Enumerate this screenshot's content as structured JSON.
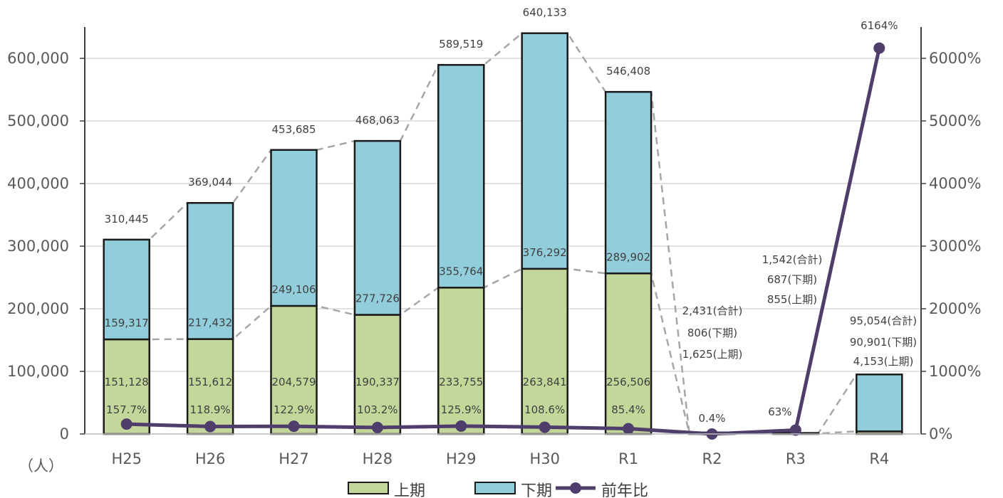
{
  "chart_data": {
    "type": "bar",
    "categories": [
      "H25",
      "H26",
      "H27",
      "H28",
      "H29",
      "H30",
      "R1",
      "R2",
      "R3",
      "R4"
    ],
    "series": [
      {
        "name": "上期",
        "type": "bar",
        "stack": "total",
        "color": "#c4d79b",
        "values": [
          151128,
          151612,
          204579,
          190337,
          233755,
          263841,
          256506,
          1625,
          855,
          4153
        ],
        "labels": [
          "151,128",
          "151,612",
          "204,579",
          "190,337",
          "233,755",
          "263,841",
          "256,506",
          "1,625(上期)",
          "855(上期)",
          "4,153(上期)"
        ]
      },
      {
        "name": "下期",
        "type": "bar",
        "stack": "total",
        "color": "#92cddc",
        "values": [
          159317,
          217432,
          249106,
          277726,
          355764,
          376292,
          289902,
          806,
          687,
          90901
        ],
        "labels": [
          "159,317",
          "217,432",
          "249,106",
          "277,726",
          "355,764",
          "376,292",
          "289,902",
          "806(下期)",
          "687(下期)",
          "90,901(下期)"
        ]
      },
      {
        "name": "前年比",
        "type": "line",
        "axis": "right",
        "color": "#4f3e6b",
        "values": [
          157.7,
          118.9,
          122.9,
          103.2,
          125.9,
          108.6,
          85.4,
          0.4,
          63,
          6164
        ],
        "labels": [
          "157.7%",
          "118.9%",
          "122.9%",
          "103.2%",
          "125.9%",
          "108.6%",
          "85.4%",
          "0.4%",
          "63%",
          "6164%"
        ]
      }
    ],
    "totals": [
      310445,
      369044,
      453685,
      468063,
      589519,
      640133,
      546408,
      2431,
      1542,
      95054
    ],
    "total_labels": [
      "310,445",
      "369,044",
      "453,685",
      "468,063",
      "589,519",
      "640,133",
      "546,408",
      "2,431(合計)",
      "1,542(合計)",
      "95,054(合計)"
    ],
    "y_left": {
      "min": 0,
      "max": 600000,
      "ticks": [
        "0",
        "100,000",
        "200,000",
        "300,000",
        "400,000",
        "500,000",
        "600,000"
      ],
      "unit": "（人）"
    },
    "y_right": {
      "min": 0,
      "max": 6000,
      "ticks": [
        "0%",
        "1000%",
        "2000%",
        "3000%",
        "4000%",
        "5000%",
        "6000%"
      ]
    },
    "grid": true,
    "legend": {
      "position": "bottom",
      "items": [
        "上期",
        "下期",
        "前年比"
      ]
    }
  }
}
